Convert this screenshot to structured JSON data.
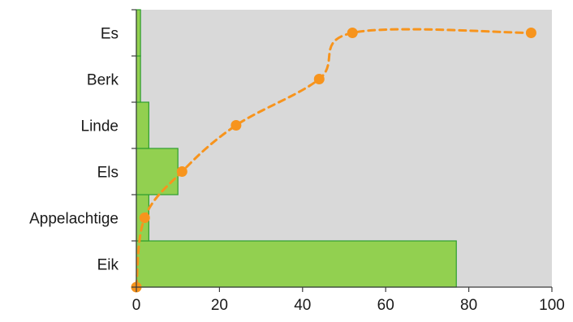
{
  "chart_data": {
    "type": "bar",
    "orientation": "horizontal",
    "title": "",
    "xlabel": "",
    "ylabel": "",
    "categories": [
      "Eik",
      "Appelachtige",
      "Els",
      "Linde",
      "Berk",
      "Es"
    ],
    "series": [
      {
        "values": [
          77,
          3,
          10,
          3,
          1,
          1
        ],
        "color": "#92d050",
        "edge_color": "#2e9e2e"
      },
      {
        "type": "line",
        "style": "dashed",
        "marker": "circle",
        "color": "#f7941d",
        "points": [
          {
            "x": 0,
            "y": 0
          },
          {
            "x": 2,
            "y": 1.5
          },
          {
            "x": 11,
            "y": 2.5
          },
          {
            "x": 24,
            "y": 3.5
          },
          {
            "x": 44,
            "y": 4.5
          },
          {
            "x": 52,
            "y": 5.5
          },
          {
            "x": 95,
            "y": 5.5
          }
        ]
      }
    ],
    "xlim": [
      0,
      100
    ],
    "xticks": [
      "0",
      "20",
      "40",
      "60",
      "80",
      "100"
    ],
    "xtick_values": [
      0,
      20,
      40,
      60,
      80,
      100
    ],
    "grid": false,
    "legend": "none",
    "plot_background": "#d9d9d9"
  }
}
